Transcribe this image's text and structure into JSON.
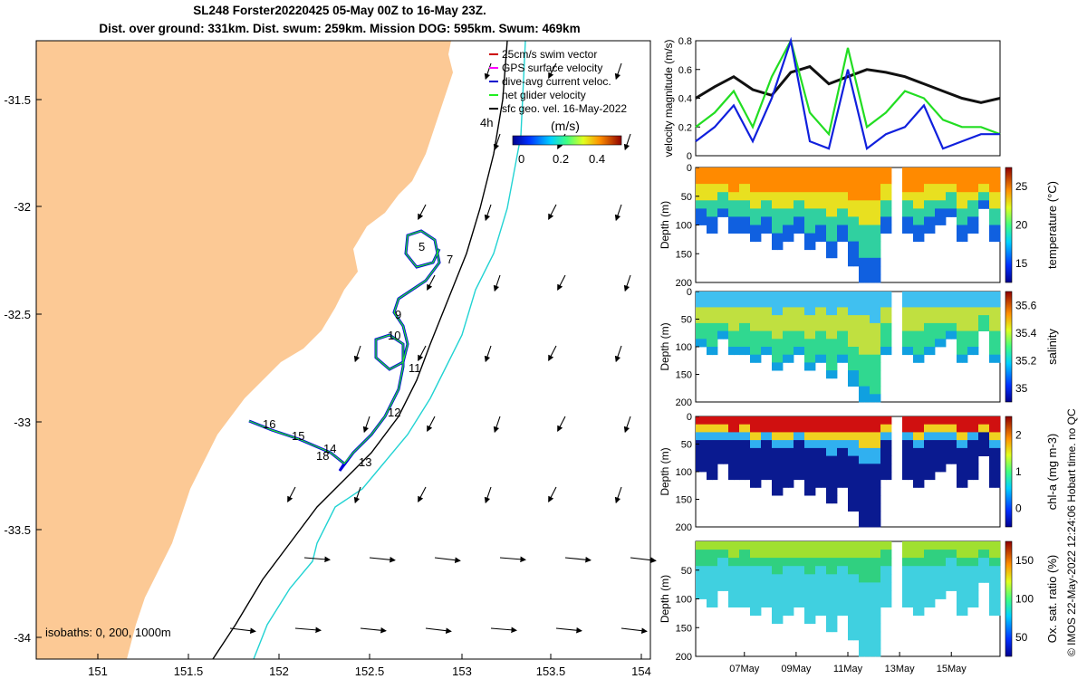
{
  "title": {
    "line1": "SL248 Forster20220425 05-May 00Z to 16-May 23Z.",
    "line2": "Dist. over ground: 331km. Dist. swum: 259km. Mission DOG: 595km. Swum: 469km"
  },
  "colors": {
    "land": "#FCC995",
    "ocean": "#FFFFFF",
    "glider_track": "#0000DD",
    "gps_velocity": "#00DD00",
    "isobath_200": "#000000",
    "isobath_1000": "#22D3D3",
    "net_velocity": "#22EE22"
  },
  "map": {
    "lon_ticks": [
      "151",
      "151.5",
      "152",
      "152.5",
      "153",
      "153.5",
      "154"
    ],
    "lat_ticks": [
      "-31.5",
      "-32",
      "-32.5",
      "-33",
      "-33.5",
      "-34"
    ],
    "legend": [
      {
        "label": "25cm/s swim vector",
        "color": "#CC0000"
      },
      {
        "label": "GPS surface velocity",
        "color": "#FF00FF"
      },
      {
        "label": "dive-avg current veloc.",
        "color": "#0000CC"
      },
      {
        "label": "net glider velocity",
        "color": "#22EE22"
      },
      {
        "label": "sfc geo. vel. 16-May-2022",
        "color": "#000000"
      }
    ],
    "colorbar_label": "(m/s)",
    "colorbar_ticks": [
      "0",
      "0.2",
      "0.4"
    ],
    "isobaths_label": "isobaths: 0, 200, 1000m",
    "track_labels": [
      "5",
      "7",
      "9",
      "10",
      "11",
      "12",
      "13",
      "14",
      "15",
      "16",
      "18",
      "4h"
    ]
  },
  "chart_data": [
    {
      "type": "line",
      "title": "",
      "ylabel": "velocity magnitude (m/s)",
      "ylim": [
        0,
        0.8
      ],
      "yticks": [
        "0",
        "0.2",
        "0.4",
        "0.6",
        "0.8"
      ],
      "series": [
        {
          "name": "surface geostrophic",
          "color": "#111111",
          "values": [
            0.4,
            0.48,
            0.55,
            0.46,
            0.42,
            0.58,
            0.62,
            0.5,
            0.55,
            0.6,
            0.58,
            0.55,
            0.5,
            0.45,
            0.4,
            0.37,
            0.4
          ]
        },
        {
          "name": "net glider velocity",
          "color": "#22DD22",
          "values": [
            0.2,
            0.3,
            0.45,
            0.2,
            0.55,
            0.8,
            0.3,
            0.15,
            0.75,
            0.2,
            0.3,
            0.45,
            0.4,
            0.25,
            0.2,
            0.2,
            0.15
          ]
        },
        {
          "name": "dive-avg current",
          "color": "#1020DD",
          "values": [
            0.1,
            0.2,
            0.35,
            0.1,
            0.4,
            0.8,
            0.1,
            0.05,
            0.6,
            0.05,
            0.15,
            0.2,
            0.35,
            0.05,
            0.1,
            0.15,
            0.15
          ]
        }
      ]
    },
    {
      "type": "heatmap",
      "ylabel": "Depth (m)",
      "cbar_label": "temperature (°C)",
      "cbar_ticks": [
        "15",
        "20",
        "25"
      ],
      "ylim": [
        0,
        200
      ],
      "yticks": [
        "0",
        "50",
        "100",
        "150",
        "200"
      ]
    },
    {
      "type": "heatmap",
      "ylabel": "Depth (m)",
      "cbar_label": "salinity",
      "cbar_ticks": [
        "35",
        "35.2",
        "35.4",
        "35.6"
      ],
      "ylim": [
        0,
        200
      ],
      "yticks": [
        "0",
        "50",
        "100",
        "150",
        "200"
      ]
    },
    {
      "type": "heatmap",
      "ylabel": "Depth (m)",
      "cbar_label": "chl-a (mg m-3)",
      "cbar_ticks": [
        "0",
        "1",
        "2"
      ],
      "ylim": [
        0,
        200
      ],
      "yticks": [
        "0",
        "50",
        "100",
        "150",
        "200"
      ]
    },
    {
      "type": "heatmap",
      "ylabel": "Depth (m)",
      "cbar_label": "Ox. sat. ratio (%)",
      "cbar_ticks": [
        "50",
        "100",
        "150"
      ],
      "ylim": [
        0,
        200
      ],
      "yticks": [
        "50",
        "100",
        "150",
        "200"
      ]
    }
  ],
  "time_axis": [
    "07May",
    "09May",
    "11May",
    "13May",
    "15May"
  ],
  "footer": "© IMOS 22-May-2022 12:24:06 Hobart time. no QC"
}
